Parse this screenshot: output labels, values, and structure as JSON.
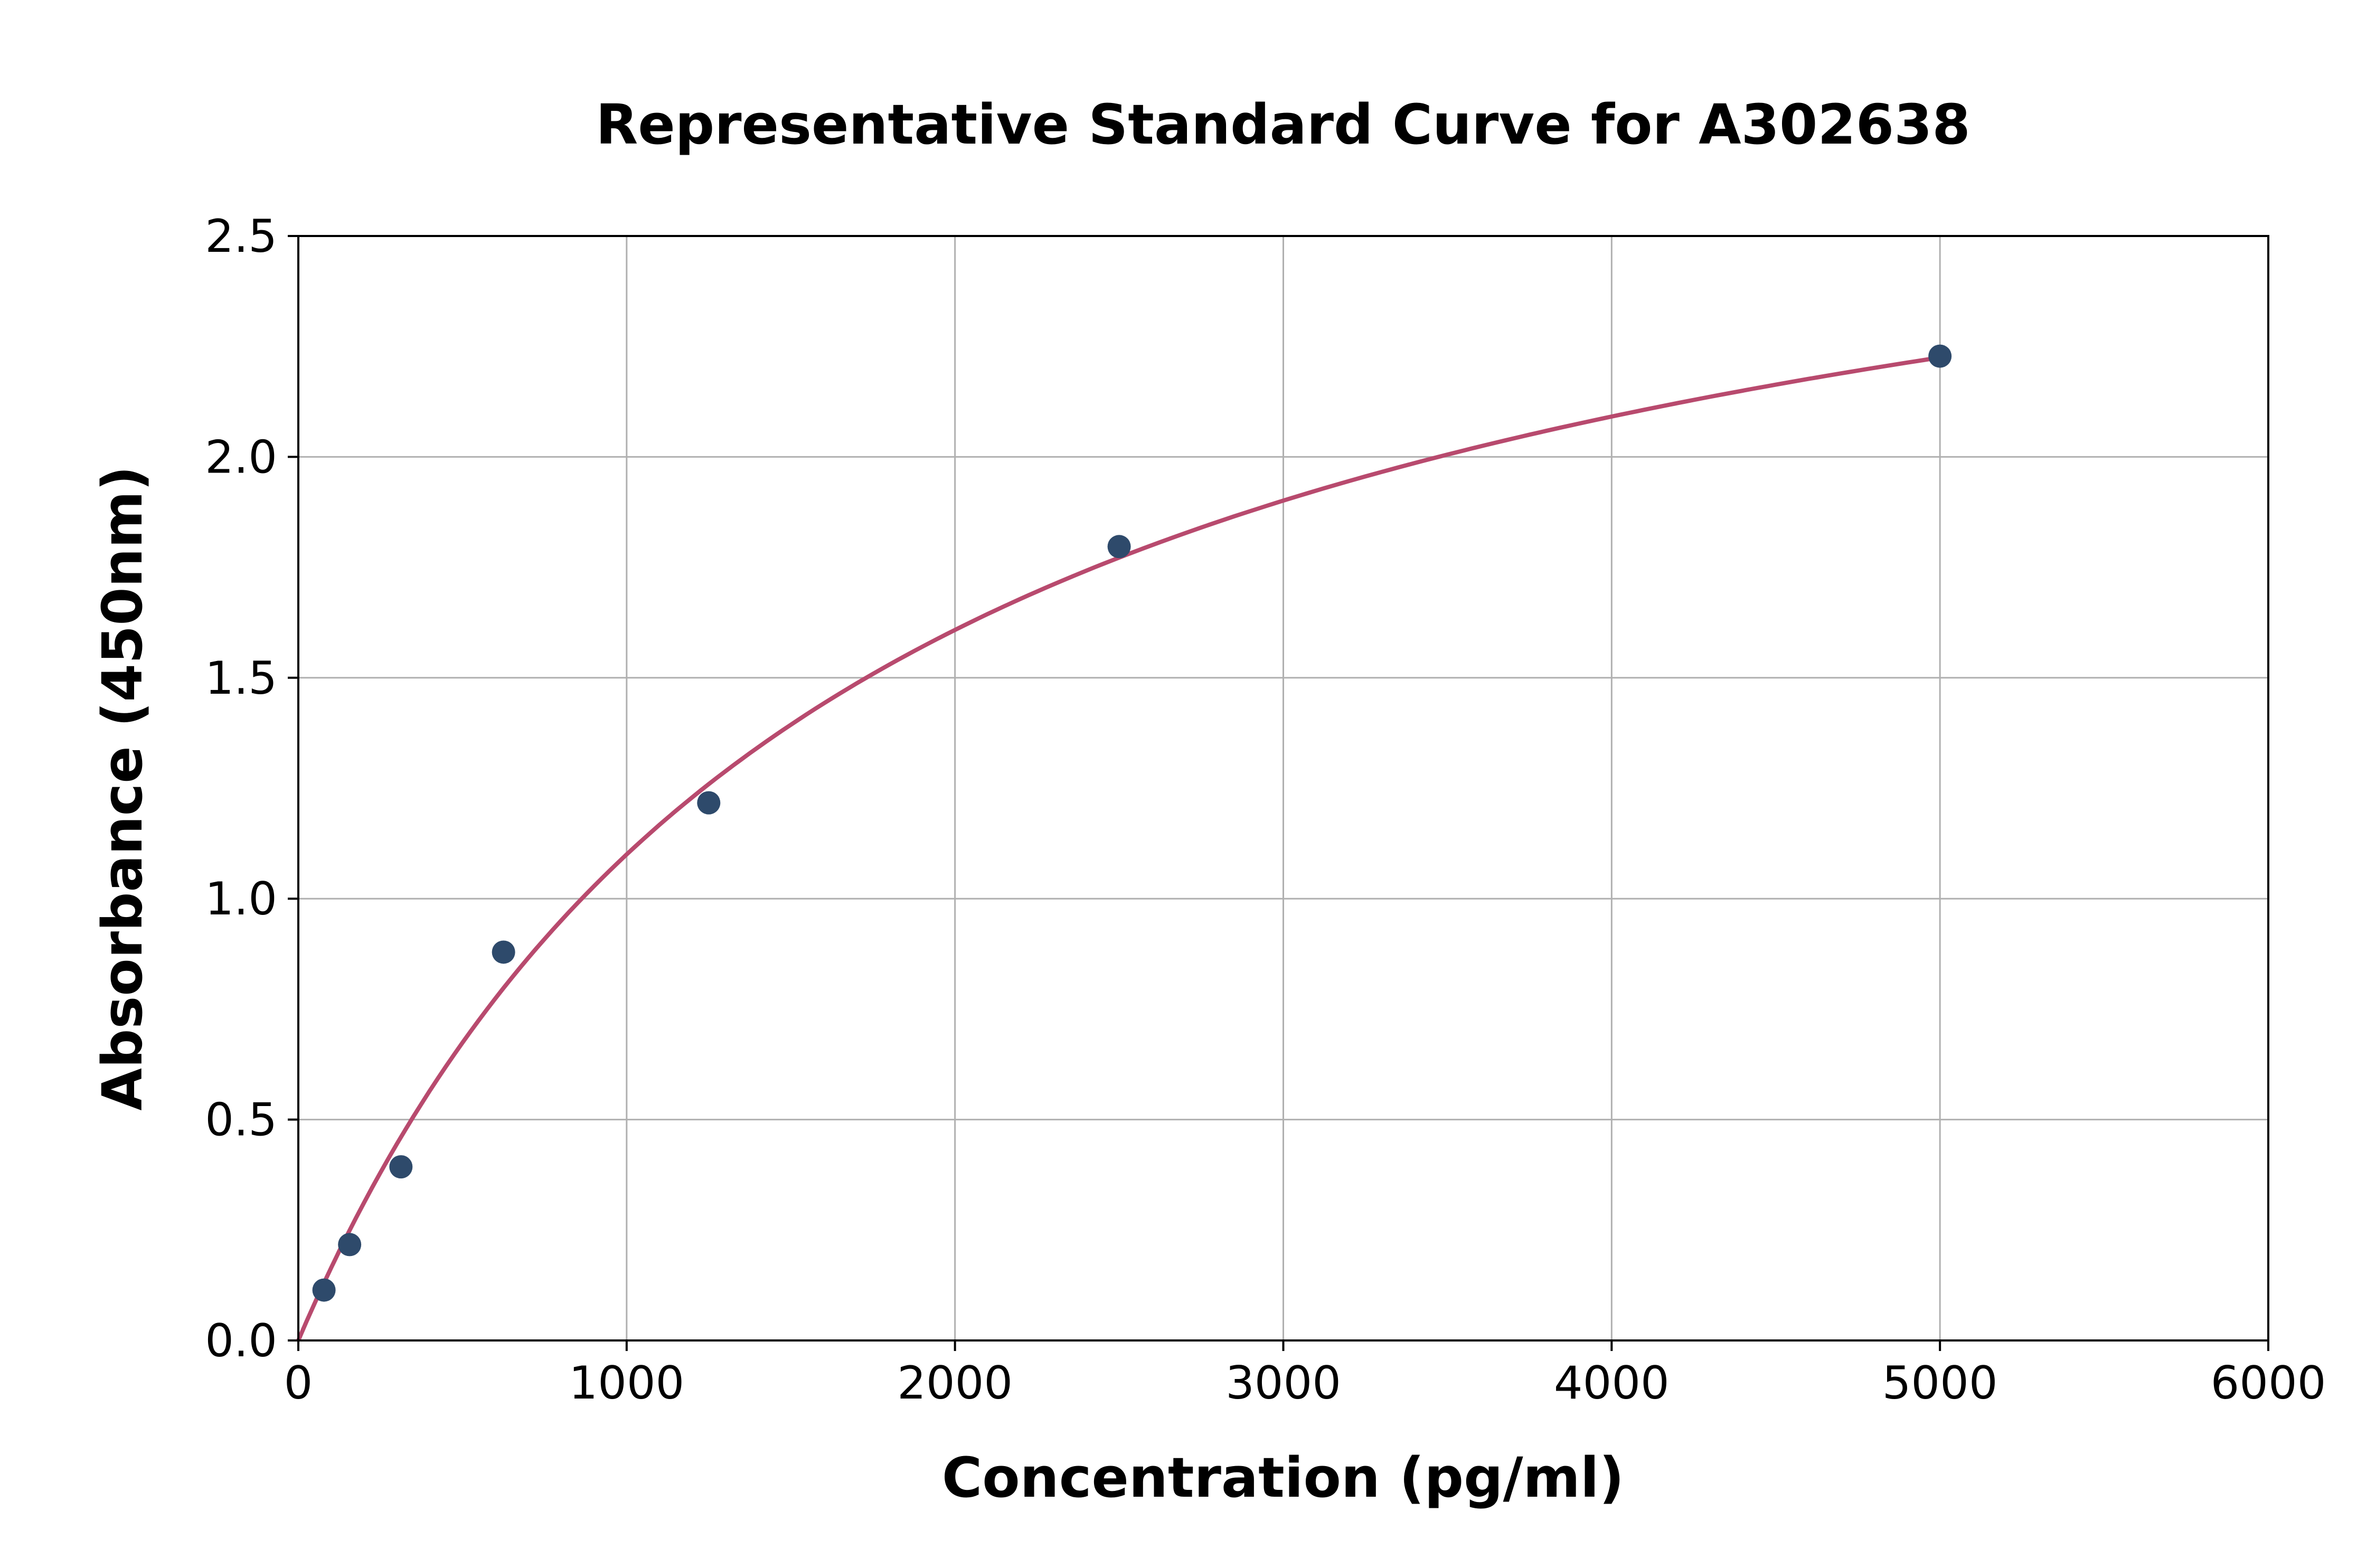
{
  "chart_data": {
    "type": "scatter",
    "title": "Representative Standard Curve for A302638",
    "xlabel": "Concentration (pg/ml)",
    "ylabel": "Absorbance (450nm)",
    "xlim": [
      0,
      6000
    ],
    "ylim": [
      0,
      2.5
    ],
    "xticks": [
      0,
      1000,
      2000,
      3000,
      4000,
      5000,
      6000
    ],
    "yticks": [
      "0.0",
      "0.5",
      "1.0",
      "1.5",
      "2.0",
      "2.5"
    ],
    "grid": true,
    "points": {
      "x": [
        78.125,
        156.25,
        312.5,
        625,
        1250,
        2500,
        5000
      ],
      "y": [
        0.114,
        0.217,
        0.393,
        0.879,
        1.217,
        1.797,
        2.228
      ],
      "color": "#2e4a6b"
    },
    "fit_curve": {
      "x": [
        0,
        250,
        500,
        750,
        1000,
        1250,
        1500,
        2000,
        2500,
        3000,
        3500,
        4000,
        4500,
        5000
      ],
      "y": [
        0,
        0.38,
        0.67,
        0.91,
        1.1,
        1.26,
        1.4,
        1.61,
        1.77,
        1.9,
        2.0,
        2.09,
        2.16,
        2.225
      ],
      "color": "#b84a6e"
    }
  }
}
